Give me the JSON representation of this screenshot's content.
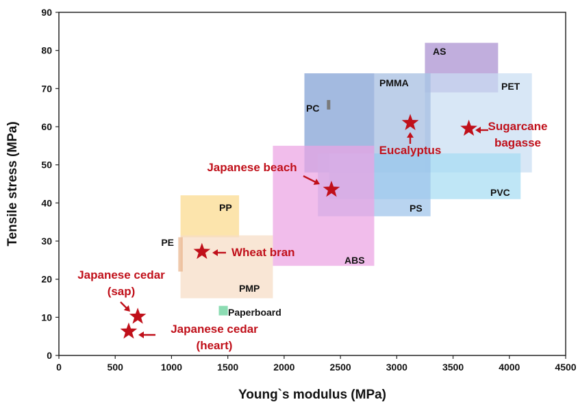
{
  "chart_data": {
    "type": "scatter",
    "title": "",
    "xlabel": "Young`s modulus (MPa)",
    "ylabel": "Tensile stress (MPa)",
    "xlim": [
      0,
      4500
    ],
    "ylim": [
      0,
      90
    ],
    "xticks": [
      "0",
      "500",
      "1000",
      "1500",
      "2000",
      "2500",
      "3000",
      "3500",
      "4000",
      "4500"
    ],
    "yticks": [
      "0",
      "10",
      "20",
      "30",
      "40",
      "50",
      "60",
      "70",
      "80",
      "90"
    ],
    "grid": false,
    "legend": "none",
    "materials": [
      {
        "name": "AS",
        "x": [
          3250,
          3900
        ],
        "y": [
          69,
          82
        ],
        "color": "#a98fd0"
      },
      {
        "name": "PET",
        "x": [
          3250,
          4200
        ],
        "y": [
          48,
          74
        ],
        "color": "#c9def3"
      },
      {
        "name": "PMMA",
        "x": [
          2800,
          3300
        ],
        "y": [
          48,
          74
        ],
        "color": "#a3bce0"
      },
      {
        "name": "PC",
        "x": [
          2180,
          2800
        ],
        "y": [
          48,
          74
        ],
        "color": "#7f9fd4"
      },
      {
        "name": "PVC",
        "x": [
          2400,
          4100
        ],
        "y": [
          41,
          53
        ],
        "color": "#a6dcf2"
      },
      {
        "name": "PS",
        "x": [
          2300,
          3300
        ],
        "y": [
          36.5,
          53
        ],
        "color": "#9ec4ea"
      },
      {
        "name": "ABS",
        "x": [
          1900,
          2800
        ],
        "y": [
          23.5,
          55
        ],
        "color": "#eca3e3"
      },
      {
        "name": "PP",
        "x": [
          1080,
          1600
        ],
        "y": [
          31,
          42
        ],
        "color": "#fbd98c"
      },
      {
        "name": "PMP",
        "x": [
          1080,
          1900
        ],
        "y": [
          15,
          31.5
        ],
        "color": "#f7dcc5"
      },
      {
        "name": "PE",
        "x": [
          1060,
          1100
        ],
        "y": [
          22,
          31
        ],
        "color": "#e9b48c"
      },
      {
        "name": "Paperboard",
        "x": [
          1420,
          1500
        ],
        "y": [
          10.5,
          13
        ],
        "color": "#5fcf95"
      }
    ],
    "pc_marker": {
      "x": [
        2380,
        2410
      ],
      "y": [
        64.5,
        67
      ],
      "color": "#7a7a7a"
    },
    "biomass": [
      {
        "name": "Japanese cedar (sap)",
        "label_lines": [
          "Japanese cedar",
          "(sap)"
        ],
        "x": 700,
        "y": 10.2
      },
      {
        "name": "Japanese cedar (heart)",
        "label_lines": [
          "Japanese cedar",
          "(heart)"
        ],
        "x": 620,
        "y": 6.3
      },
      {
        "name": "Wheat bran",
        "label_lines": [
          "Wheat bran"
        ],
        "x": 1270,
        "y": 27.2
      },
      {
        "name": "Japanese beach",
        "label_lines": [
          "Japanese beach"
        ],
        "x": 2420,
        "y": 43.5
      },
      {
        "name": "Eucalyptus",
        "label_lines": [
          "Eucalyptus"
        ],
        "x": 3120,
        "y": 61
      },
      {
        "name": "Sugarcane bagasse",
        "label_lines": [
          "Sugarcane",
          "bagasse"
        ],
        "x": 3640,
        "y": 59.5
      }
    ],
    "star_color": "#c0101a"
  }
}
